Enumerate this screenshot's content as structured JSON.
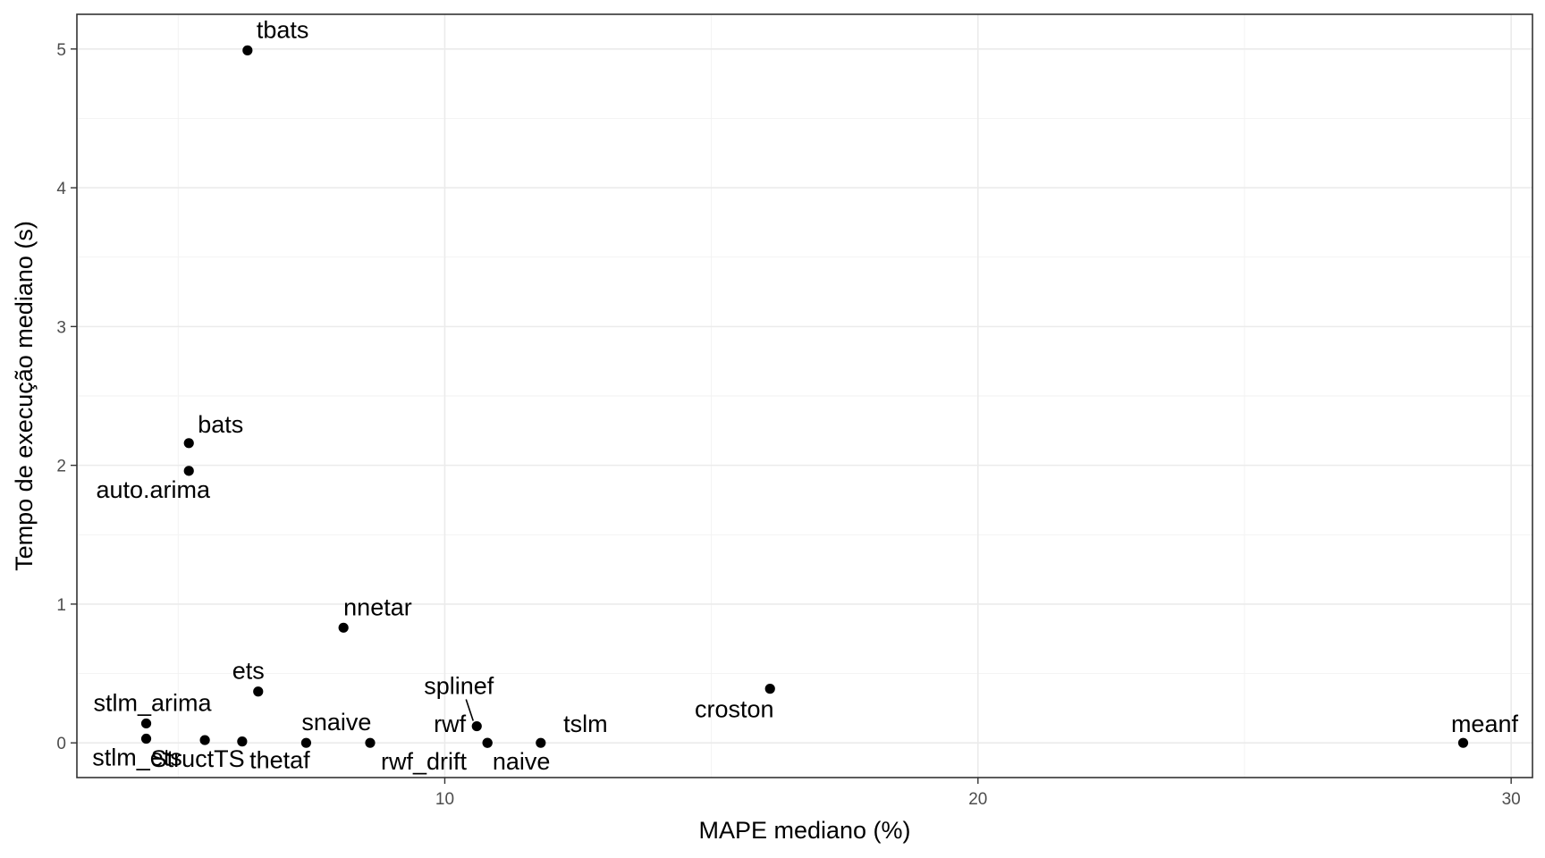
{
  "chart_data": {
    "type": "scatter",
    "title": "",
    "xlabel": "MAPE mediano (%)",
    "ylabel": "Tempo de execução mediano (s)",
    "xlim": [
      3.1,
      30.4
    ],
    "ylim": [
      -0.25,
      5.25
    ],
    "x_ticks": [
      10,
      20,
      30
    ],
    "y_ticks": [
      0,
      1,
      2,
      3,
      4,
      5
    ],
    "x_tick_labels": [
      "10",
      "20",
      "30"
    ],
    "y_tick_labels": [
      "0",
      "1",
      "2",
      "3",
      "4",
      "5"
    ],
    "grid": true,
    "legend": "none",
    "point_color": "#000000",
    "points": [
      {
        "label": "tbats",
        "x": 6.3,
        "y": 4.99
      },
      {
        "label": "bats",
        "x": 5.2,
        "y": 2.16
      },
      {
        "label": "auto.arima",
        "x": 5.2,
        "y": 1.96
      },
      {
        "label": "nnetar",
        "x": 8.1,
        "y": 0.83
      },
      {
        "label": "ets",
        "x": 6.5,
        "y": 0.37
      },
      {
        "label": "splinef",
        "x": 10.6,
        "y": 0.12
      },
      {
        "label": "croston",
        "x": 16.1,
        "y": 0.39
      },
      {
        "label": "stlm_arima",
        "x": 4.4,
        "y": 0.14
      },
      {
        "label": "stlm_ets",
        "x": 4.4,
        "y": 0.03
      },
      {
        "label": "StructTS",
        "x": 5.5,
        "y": 0.02
      },
      {
        "label": "thetaf",
        "x": 6.2,
        "y": 0.01
      },
      {
        "label": "snaive",
        "x": 7.4,
        "y": 0.0
      },
      {
        "label": "rwf_drift",
        "x": 8.6,
        "y": 0.0
      },
      {
        "label": "rwf",
        "x": 10.8,
        "y": 0.0
      },
      {
        "label": "naive",
        "x": 10.8,
        "y": 0.0
      },
      {
        "label": "tslm",
        "x": 11.8,
        "y": 0.0
      },
      {
        "label": "meanf",
        "x": 29.1,
        "y": 0.0
      }
    ]
  }
}
